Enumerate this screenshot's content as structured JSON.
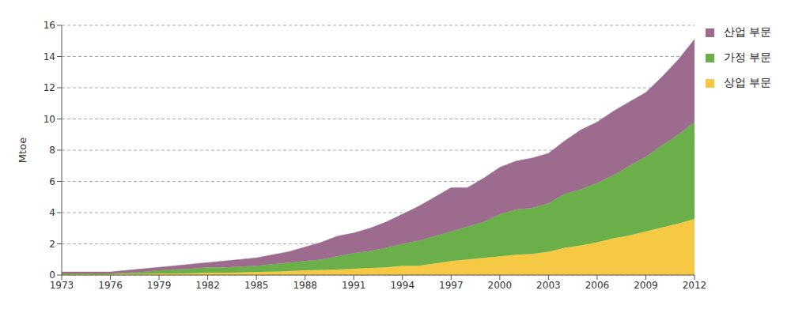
{
  "chart_data": {
    "type": "area",
    "stacked": true,
    "grid": true,
    "legend": "upper right",
    "y_label": "Mtoe",
    "x": [
      1973,
      1974,
      1975,
      1976,
      1977,
      1978,
      1979,
      1980,
      1981,
      1982,
      1983,
      1984,
      1985,
      1986,
      1987,
      1988,
      1989,
      1990,
      1991,
      1992,
      1993,
      1994,
      1995,
      1996,
      1997,
      1998,
      1999,
      2000,
      2001,
      2002,
      2003,
      2004,
      2005,
      2006,
      2007,
      2008,
      2009,
      2010,
      2011,
      2012
    ],
    "xlim": [
      1973,
      2012
    ],
    "xticks": [
      1973,
      1976,
      1979,
      1982,
      1985,
      1988,
      1991,
      1994,
      1997,
      2000,
      2003,
      2006,
      2009,
      2012
    ],
    "ylim": [
      0,
      16
    ],
    "yticks": [
      0,
      2,
      4,
      6,
      8,
      10,
      12,
      14,
      16
    ],
    "series": [
      {
        "name": "상업 부문",
        "color": "#f6c945",
        "values": [
          0.05,
          0.05,
          0.05,
          0.05,
          0.07,
          0.08,
          0.1,
          0.1,
          0.12,
          0.15,
          0.15,
          0.17,
          0.2,
          0.22,
          0.25,
          0.3,
          0.33,
          0.35,
          0.4,
          0.45,
          0.5,
          0.6,
          0.6,
          0.75,
          0.9,
          1.0,
          1.1,
          1.2,
          1.3,
          1.35,
          1.5,
          1.75,
          1.9,
          2.1,
          2.35,
          2.55,
          2.8,
          3.05,
          3.3,
          3.6
        ]
      },
      {
        "name": "가정 부문",
        "color": "#6aaf4a",
        "values": [
          0.05,
          0.05,
          0.05,
          0.05,
          0.08,
          0.12,
          0.2,
          0.25,
          0.28,
          0.35,
          0.35,
          0.38,
          0.4,
          0.48,
          0.55,
          0.6,
          0.67,
          0.85,
          1.0,
          1.1,
          1.25,
          1.4,
          1.6,
          1.75,
          1.9,
          2.1,
          2.3,
          2.7,
          2.9,
          2.95,
          3.1,
          3.45,
          3.6,
          3.8,
          4.05,
          4.45,
          4.8,
          5.25,
          5.7,
          6.2
        ]
      },
      {
        "name": "산업 부문",
        "color": "#9c6b8e",
        "values": [
          0.1,
          0.1,
          0.1,
          0.1,
          0.15,
          0.2,
          0.2,
          0.25,
          0.3,
          0.3,
          0.4,
          0.45,
          0.5,
          0.6,
          0.7,
          0.9,
          1.1,
          1.3,
          1.3,
          1.45,
          1.65,
          1.9,
          2.2,
          2.5,
          2.8,
          2.5,
          2.8,
          3.0,
          3.1,
          3.2,
          3.2,
          3.4,
          3.8,
          3.9,
          4.1,
          4.1,
          4.1,
          4.4,
          4.8,
          5.3
        ]
      }
    ]
  }
}
